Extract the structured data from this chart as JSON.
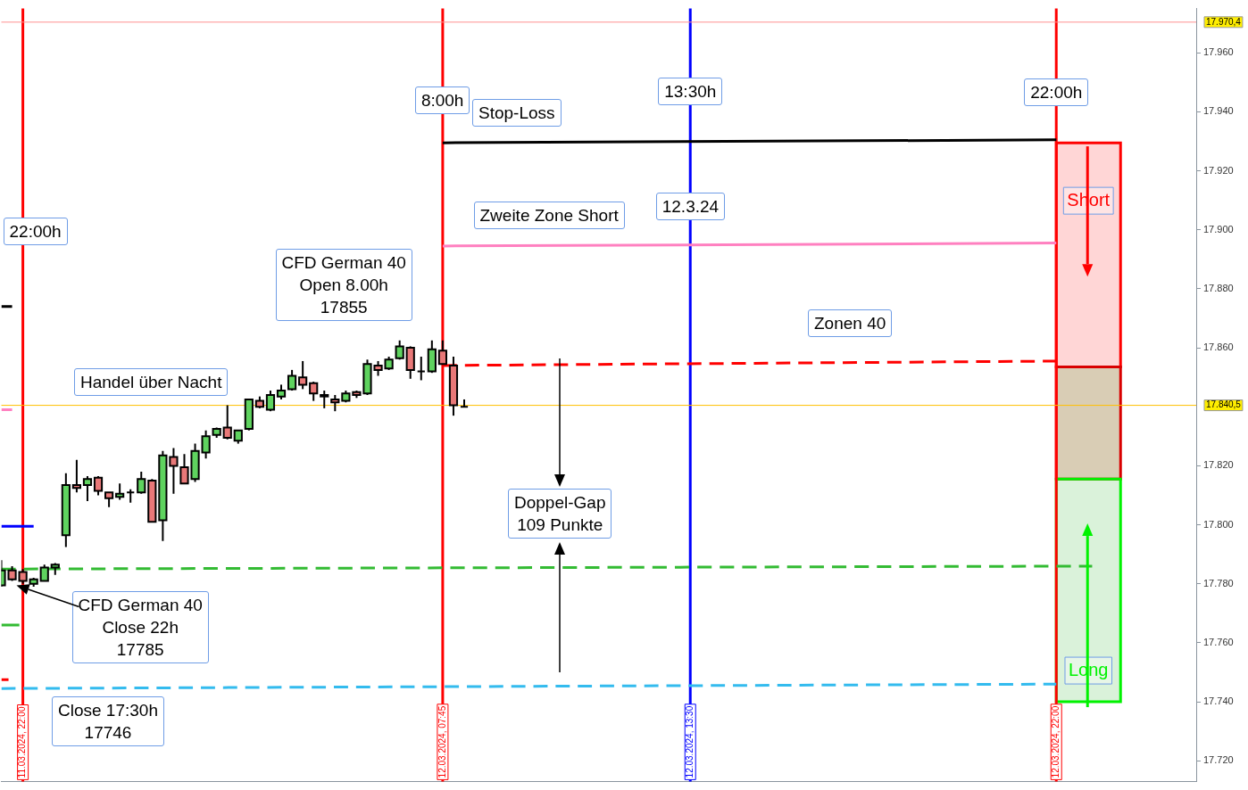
{
  "chart_data": {
    "type": "candlestick",
    "xticks": [
      {
        "value": "2024-03-11T22:00",
        "label": "11.03.2024, 22:00"
      },
      {
        "value": "2024-03-12T07:45",
        "label": "12.03.2024, 07:45"
      },
      {
        "value": "2024-03-12T13:30",
        "label": "12.03.2024, 13:30"
      },
      {
        "value": "2024-03-12T22:00",
        "label": "12.03.2024, 22:00"
      }
    ],
    "xlim": [
      "2024-03-11T21:30",
      "2024-03-13T01:15"
    ],
    "ylim": [
      17713,
      17975
    ],
    "yticks": [
      {
        "value": 17720,
        "label": "17.720"
      },
      {
        "value": 17740,
        "label": "17.740"
      },
      {
        "value": 17760,
        "label": "17.760"
      },
      {
        "value": 17780,
        "label": "17.780"
      },
      {
        "value": 17800,
        "label": "17.800"
      },
      {
        "value": 17820,
        "label": "17.820"
      },
      {
        "value": 17860,
        "label": "17.860"
      },
      {
        "value": 17880,
        "label": "17.880"
      },
      {
        "value": 17900,
        "label": "17.900"
      },
      {
        "value": 17920,
        "label": "17.920"
      },
      {
        "value": 17940,
        "label": "17.940"
      },
      {
        "value": 17960,
        "label": "17.960"
      }
    ],
    "x": [
      "2024-03-11T21:30",
      "2024-03-11T21:45",
      "2024-03-11T22:00",
      "2024-03-11T22:15",
      "2024-03-11T22:30",
      "2024-03-11T22:45",
      "2024-03-11T23:00",
      "2024-03-11T23:15",
      "2024-03-11T23:30",
      "2024-03-11T23:45",
      "2024-03-12T00:00",
      "2024-03-12T00:15",
      "2024-03-12T00:30",
      "2024-03-12T00:45",
      "2024-03-12T01:00",
      "2024-03-12T01:15",
      "2024-03-12T01:30",
      "2024-03-12T01:45",
      "2024-03-12T02:00",
      "2024-03-12T02:15",
      "2024-03-12T02:30",
      "2024-03-12T02:45",
      "2024-03-12T03:00",
      "2024-03-12T03:15",
      "2024-03-12T03:30",
      "2024-03-12T03:45",
      "2024-03-12T04:00",
      "2024-03-12T04:15",
      "2024-03-12T04:30",
      "2024-03-12T04:45",
      "2024-03-12T05:00",
      "2024-03-12T05:15",
      "2024-03-12T05:30",
      "2024-03-12T05:45",
      "2024-03-12T06:00",
      "2024-03-12T06:15",
      "2024-03-12T06:30",
      "2024-03-12T06:45",
      "2024-03-12T07:00",
      "2024-03-12T07:15",
      "2024-03-12T07:30",
      "2024-03-12T07:45",
      "2024-03-12T08:00",
      "2024-03-12T08:15"
    ],
    "ohlc": [
      [
        17779.5,
        17788,
        17779,
        17784.5
      ],
      [
        17784.5,
        17786,
        17781,
        17781.5
      ],
      [
        17784,
        17785,
        17780,
        17781
      ],
      [
        17780,
        17782,
        17779,
        17781.5
      ],
      [
        17781,
        17786.5,
        17781,
        17785.5
      ],
      [
        17785.5,
        17787,
        17783,
        17786.5
      ],
      [
        17796.5,
        17817.5,
        17792.5,
        17813.5
      ],
      [
        17813.5,
        17822,
        17811,
        17812.5
      ],
      [
        17813.5,
        17816.5,
        17808,
        17815.5
      ],
      [
        17816,
        17816.5,
        17810,
        17811.5
      ],
      [
        17811,
        17811,
        17806,
        17809
      ],
      [
        17809.5,
        17814,
        17808.5,
        17810.5
      ],
      [
        17811,
        17812,
        17807.5,
        17811
      ],
      [
        17811,
        17818,
        17810.5,
        17815.5
      ],
      [
        17815,
        17815.5,
        17801,
        17801
      ],
      [
        17801.5,
        17825,
        17794.5,
        17823.5
      ],
      [
        17823,
        17826,
        17810.5,
        17820
      ],
      [
        17819.5,
        17824,
        17814,
        17814
      ],
      [
        17815.5,
        17827.5,
        17814.5,
        17825
      ],
      [
        17824.5,
        17832,
        17822.5,
        17830
      ],
      [
        17830.5,
        17833,
        17829.5,
        17832.5
      ],
      [
        17833,
        17840.5,
        17829,
        17829.5
      ],
      [
        17828.5,
        17832,
        17827.5,
        17832
      ],
      [
        17832.5,
        17842.5,
        17832,
        17842.5
      ],
      [
        17842,
        17843.5,
        17839.5,
        17840
      ],
      [
        17839,
        17845.5,
        17838.5,
        17844
      ],
      [
        17843.5,
        17847.5,
        17842.5,
        17845.5
      ],
      [
        17846,
        17852.5,
        17845.5,
        17850.5
      ],
      [
        17850,
        17855.5,
        17846,
        17847.5
      ],
      [
        17848,
        17848.5,
        17842,
        17844.5
      ],
      [
        17844,
        17845.5,
        17839.5,
        17843.5
      ],
      [
        17842.5,
        17844,
        17838.5,
        17841.5
      ],
      [
        17842,
        17845.5,
        17841.5,
        17844.5
      ],
      [
        17845,
        17845.5,
        17843,
        17844
      ],
      [
        17844.5,
        17856,
        17844,
        17854.5
      ],
      [
        17854,
        17855.5,
        17850.5,
        17852.5
      ],
      [
        17853,
        17857,
        17852.5,
        17856
      ],
      [
        17856.5,
        17862.5,
        17856,
        17860.5
      ],
      [
        17860,
        17860.5,
        17849.5,
        17852.5
      ],
      [
        17852,
        17857,
        17849,
        17852
      ],
      [
        17852,
        17862.5,
        17851.5,
        17859.5
      ],
      [
        17859,
        17862.5,
        17854.5,
        17854.5
      ],
      [
        17854,
        17857,
        17837,
        17840.5
      ],
      [
        17840,
        17842.5,
        17840,
        17840
      ]
    ],
    "series": [
      {
        "type": "line",
        "color": "#000000",
        "line_style": "solid",
        "x": [
          "2024-03-12T07:45",
          "2024-03-12T22:00"
        ],
        "values": [
          17929.5,
          17930.5
        ]
      },
      {
        "type": "line",
        "color": "#ff80c0",
        "line_style": "solid",
        "x": [
          "2024-03-12T07:45",
          "2024-03-12T22:00"
        ],
        "values": [
          17894.5,
          17895.5
        ]
      },
      {
        "type": "line",
        "color": "#ff0000",
        "line_style": "dashed",
        "x": [
          "2024-03-12T07:45",
          "2024-03-12T22:00"
        ],
        "values": [
          17854,
          17855.5
        ]
      },
      {
        "type": "line",
        "color": "#33bb33",
        "line_style": "dashed",
        "x": [
          "2024-03-11T21:30",
          "2024-03-12T22:50"
        ],
        "values": [
          17785,
          17786
        ]
      },
      {
        "type": "line",
        "color": "#33bbee",
        "line_style": "dashed",
        "x": [
          "2024-03-11T21:30",
          "2024-03-12T22:00"
        ],
        "values": [
          17744.5,
          17746
        ]
      },
      {
        "type": "line",
        "color": "#000000",
        "line_style": "solid",
        "x": [
          "2024-03-11T21:30",
          "2024-03-11T21:45"
        ],
        "values": [
          17874,
          17874
        ]
      },
      {
        "type": "line",
        "color": "#0000ff",
        "line_style": "solid",
        "x": [
          "2024-03-11T21:30",
          "2024-03-11T22:15"
        ],
        "values": [
          17799.5,
          17799.5
        ]
      },
      {
        "type": "line",
        "color": "#ff80c0",
        "line_style": "solid",
        "x": [
          "2024-03-11T21:30",
          "2024-03-11T21:45"
        ],
        "values": [
          17839,
          17839
        ]
      },
      {
        "type": "line",
        "color": "#33bb33",
        "line_style": "dashed",
        "x": [
          "2024-03-11T21:30",
          "2024-03-11T21:58"
        ],
        "values": [
          17766,
          17766
        ]
      },
      {
        "type": "line",
        "color": "#ff0000",
        "line_style": "solid",
        "x": [
          "2024-03-11T21:30",
          "2024-03-11T21:40"
        ],
        "values": [
          17747.5,
          17747.5
        ]
      }
    ],
    "ref_lines": [
      {
        "axis": "x",
        "value": "2024-03-11T22:00",
        "color": "#ff0000"
      },
      {
        "axis": "x",
        "value": "2024-03-12T07:45",
        "color": "#ff0000"
      },
      {
        "axis": "x",
        "value": "2024-03-12T13:30",
        "color": "#0000ff"
      },
      {
        "axis": "x",
        "value": "2024-03-12T22:00",
        "color": "#ff0000"
      },
      {
        "axis": "y",
        "value": 17970.4,
        "label": "17.970,4",
        "color": "#ff9090"
      },
      {
        "axis": "y",
        "value": 17840.5,
        "label": "17.840,5",
        "color": "#ffc000"
      }
    ],
    "bands": [
      {
        "axis": "y",
        "from": 17853.5,
        "to": 17929.5,
        "label": "Short",
        "color": "#ffd6d6"
      },
      {
        "axis": "y",
        "from": 17815.5,
        "to": 17853.5,
        "color": "#d9cdb5"
      },
      {
        "axis": "y",
        "from": 17740,
        "to": 17815.5,
        "label": "Long",
        "color": "#daf2da"
      }
    ],
    "annotations": [
      {
        "text": "22:00h",
        "x": "2024-03-11T22:00",
        "y": 17899.5
      },
      {
        "text": "8:00h",
        "x": "2024-03-12T07:45",
        "y": 17944
      },
      {
        "text": "13:30h",
        "x": "2024-03-12T13:30",
        "y": 17947
      },
      {
        "text": "22:00h",
        "x": "2024-03-12T22:00",
        "y": 17946.5
      },
      "Stop-Loss",
      "Zweite Zone Short",
      {
        "text": "12.3.24",
        "x": "2024-03-12T13:30",
        "y": 17908
      },
      "CFD German 40\nOpen 8.00h\n17855",
      "Zonen 40",
      "Handel über Nacht",
      "Doppel-Gap\n109 Punkte",
      "CFD German 40\nClose 22h\n17785",
      "Close 17:30h\n17746"
    ]
  }
}
